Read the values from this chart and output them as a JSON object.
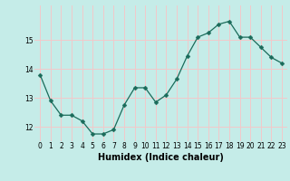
{
  "x": [
    0,
    1,
    2,
    3,
    4,
    5,
    6,
    7,
    8,
    9,
    10,
    11,
    12,
    13,
    14,
    15,
    16,
    17,
    18,
    19,
    20,
    21,
    22,
    23
  ],
  "y": [
    13.8,
    12.9,
    12.4,
    12.4,
    12.2,
    11.75,
    11.75,
    11.9,
    12.75,
    13.35,
    13.35,
    12.85,
    13.1,
    13.65,
    14.45,
    15.1,
    15.25,
    15.55,
    15.65,
    15.1,
    15.1,
    14.75,
    14.4,
    14.2
  ],
  "xlabel": "Humidex (Indice chaleur)",
  "bg_color": "#c5ece8",
  "grid_color": "#f2c8ca",
  "line_color": "#1a6b5a",
  "marker_color": "#1a6b5a",
  "ylim_min": 11.5,
  "ylim_max": 16.2,
  "yticks": [
    12,
    13,
    14,
    15
  ],
  "xticks": [
    0,
    1,
    2,
    3,
    4,
    5,
    6,
    7,
    8,
    9,
    10,
    11,
    12,
    13,
    14,
    15,
    16,
    17,
    18,
    19,
    20,
    21,
    22,
    23
  ],
  "tick_fontsize": 5.5,
  "xlabel_fontsize": 7.0,
  "marker_size": 2.5,
  "linewidth": 0.9
}
